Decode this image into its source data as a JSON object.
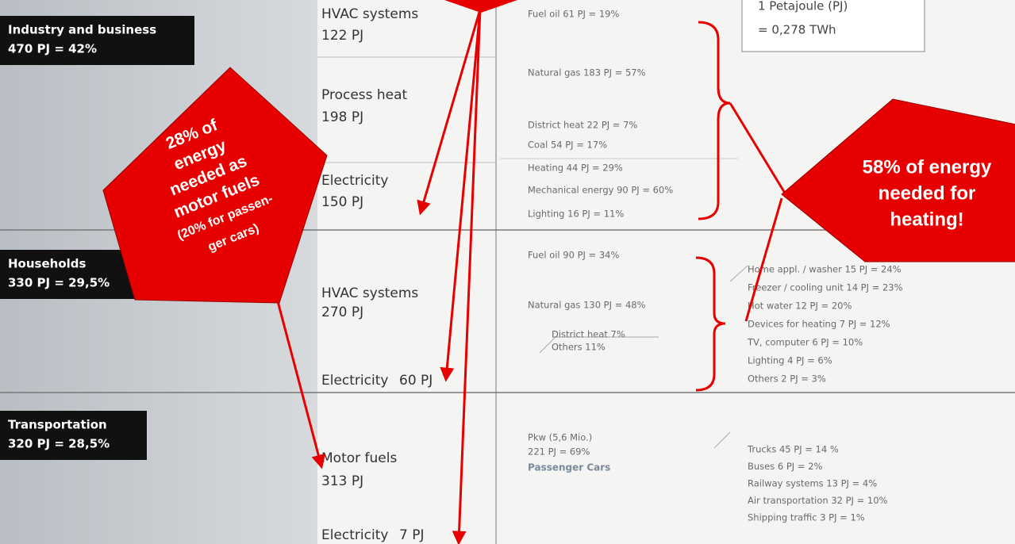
{
  "info_box": {
    "line1": "1 Petajoule (PJ)",
    "line2": "= 0,278 TWh"
  },
  "sectors": [
    {
      "name": "Industry and business",
      "value": "470 PJ = 42%"
    },
    {
      "name": "Households",
      "value": "330 PJ = 29,5%"
    },
    {
      "name": "Transportation",
      "value": "320 PJ = 28,5%"
    }
  ],
  "uses": [
    {
      "name": "HVAC systems",
      "value": "122 PJ"
    },
    {
      "name": "Process heat",
      "value": "198 PJ"
    },
    {
      "name": "Electricity",
      "value": "150 PJ"
    },
    {
      "name": "HVAC systems",
      "value": "270 PJ"
    },
    {
      "name": "Electricity",
      "value": "60 PJ"
    },
    {
      "name": "Motor fuels",
      "value": "313 PJ"
    },
    {
      "name": "Electricity",
      "value": "7 PJ"
    }
  ],
  "details": {
    "industry": [
      "Fuel oil 61 PJ = 19%",
      "Natural gas 183 PJ = 57%",
      "District heat 22 PJ = 7%",
      "Coal 54 PJ = 17%",
      "Heating 44 PJ = 29%",
      "Mechanical energy 90 PJ = 60%",
      "Lighting 16 PJ = 11%"
    ],
    "households_heat": [
      "Fuel oil 90 PJ = 34%",
      "Natural gas 130 PJ = 48%",
      "District heat 7%",
      "Others 11%"
    ],
    "households_electricity": [
      "Home appl. / washer 15 PJ = 24%",
      "Freezer / cooling unit 14 PJ = 23%",
      "Hot water 12 PJ = 20%",
      "Devices for heating 7 PJ = 12%",
      "TV, computer 6 PJ = 10%",
      "Lighting 4 PJ = 6%",
      "Others 2 PJ = 3%"
    ],
    "transport_cars": [
      "Pkw (5,6 Mio.)",
      "221 PJ = 69%"
    ],
    "transport_cars_note": "Passenger Cars",
    "transport_other": [
      "Trucks 45 PJ = 14 %",
      "Buses 6 PJ = 2%",
      "Railway systems 13 PJ = 4%",
      "Air transportation 32 PJ = 10%",
      "Shipping traffic 3 PJ = 1%"
    ]
  },
  "callouts": {
    "left": [
      "28% of",
      "energy",
      "needed as",
      "motor fuels",
      "(20% for passen-",
      "ger cars)"
    ],
    "right": [
      "58% of energy",
      "needed for",
      "heating!"
    ]
  }
}
